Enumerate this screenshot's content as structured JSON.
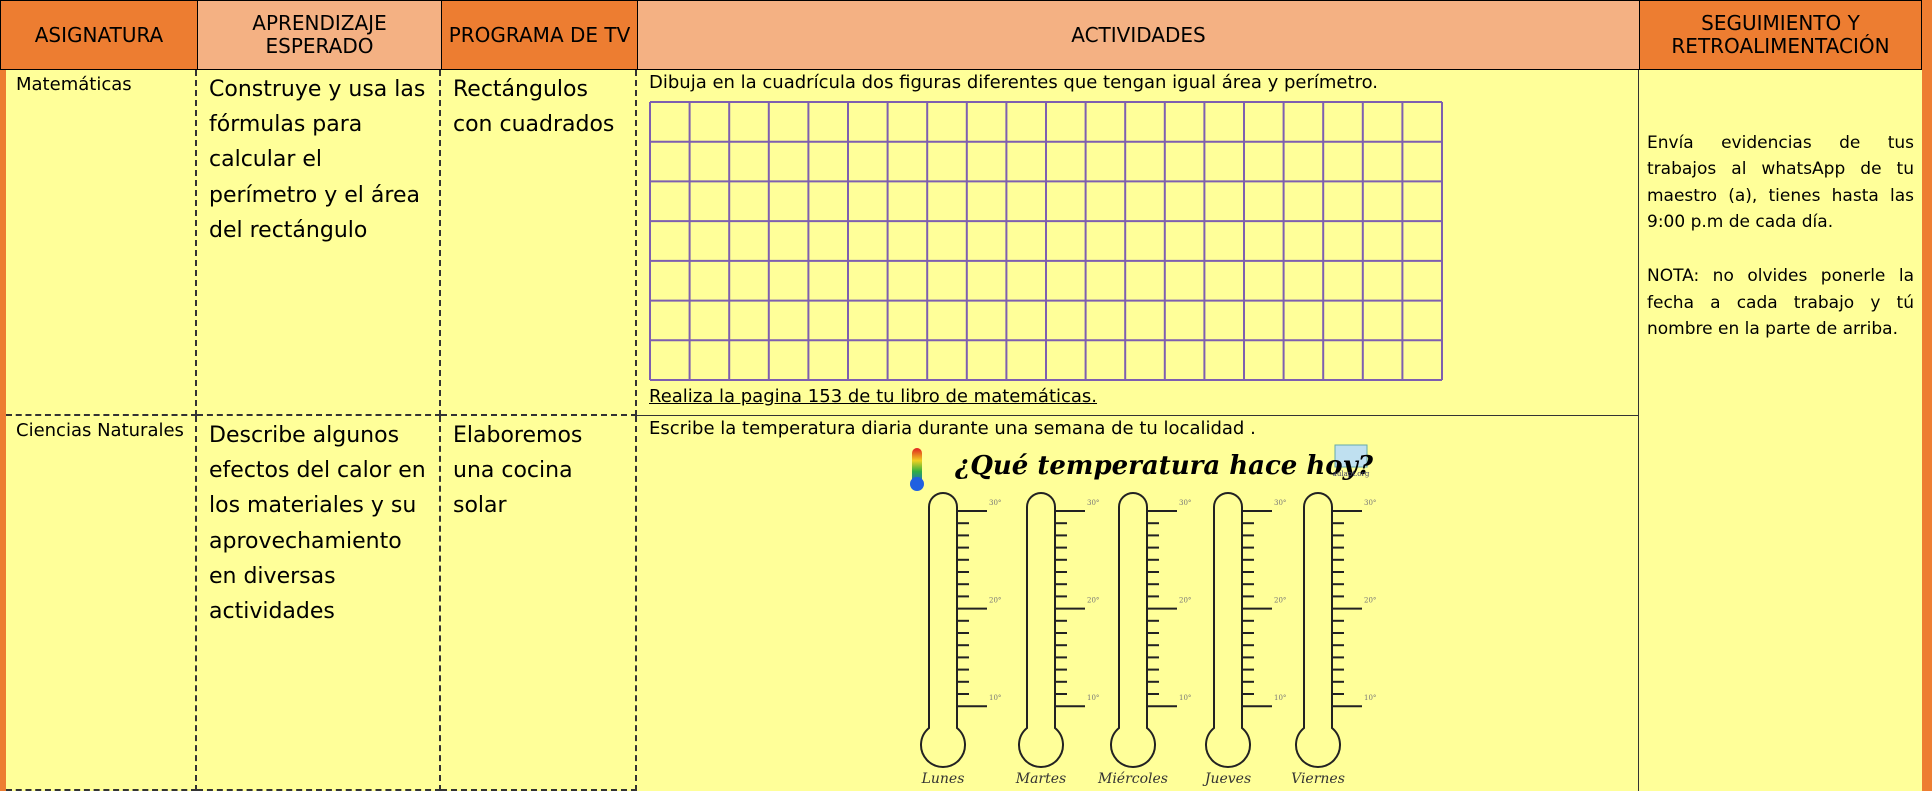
{
  "header": {
    "columns": [
      "ASIGNATURA",
      "APRENDIZAJE ESPERADO",
      "PROGRAMA DE TV",
      "ACTIVIDADES",
      "SEGUIMIENTO Y RETROALIMENTACIÓN"
    ]
  },
  "rows": [
    {
      "subject": "Matemáticas",
      "learning": "Construye y usa las fórmulas para calcular el perímetro y el área del rectángulo",
      "program": "Rectángulos con cuadrados",
      "activity": "Dibuja en la cuadrícula dos figuras diferentes que tengan igual área y perímetro.",
      "activity_note": "Realiza la pagina 153  de tu libro de matemáticas."
    },
    {
      "subject": "Ciencias Naturales",
      "learning": "Describe algunos efectos del calor en los materiales y su aprovechamiento en diversas actividades",
      "program": "Elaboremos una cocina solar",
      "activity": "Escribe la temperatura diaria durante una semana de tu localidad .",
      "image": {
        "title": "¿Qué temperatura hace hoy?",
        "logo": "aulapt.org",
        "days": [
          "Lunes",
          "Martes",
          "Miércoles",
          "Jueves",
          "Viernes"
        ],
        "tick_labels": [
          "30°",
          "20°",
          "10°"
        ]
      }
    }
  ],
  "follow_up": [
    "Envía evidencias de tus trabajos al whatsApp de tu maestro (a), tienes hasta las 9:00 p.m de cada día.",
    "NOTA: no olvides ponerle la fecha a cada trabajo y tú nombre en la parte de arriba."
  ]
}
